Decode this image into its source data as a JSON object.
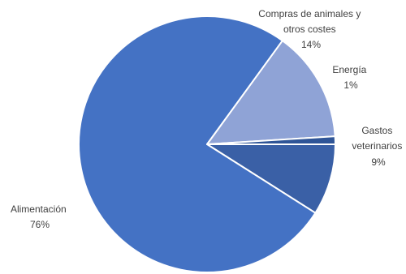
{
  "chart_data": {
    "type": "pie",
    "title": "",
    "start_angle_deg": 0,
    "direction": "clockwise",
    "legend": "none",
    "slices": [
      {
        "label_lines": [
          "Gastos",
          "veterinarios"
        ],
        "value": 9,
        "value_label": "9%",
        "color": "#3a60a6"
      },
      {
        "label_lines": [
          "Alimentación"
        ],
        "value": 76,
        "value_label": "76%",
        "color": "#4472c4"
      },
      {
        "label_lines": [
          "Compras de animales y",
          "otros costes"
        ],
        "value": 14,
        "value_label": "14%",
        "color": "#8fa3d6"
      },
      {
        "label_lines": [
          "Energía"
        ],
        "value": 1,
        "value_label": "1%",
        "color": "#2f5597"
      }
    ]
  }
}
